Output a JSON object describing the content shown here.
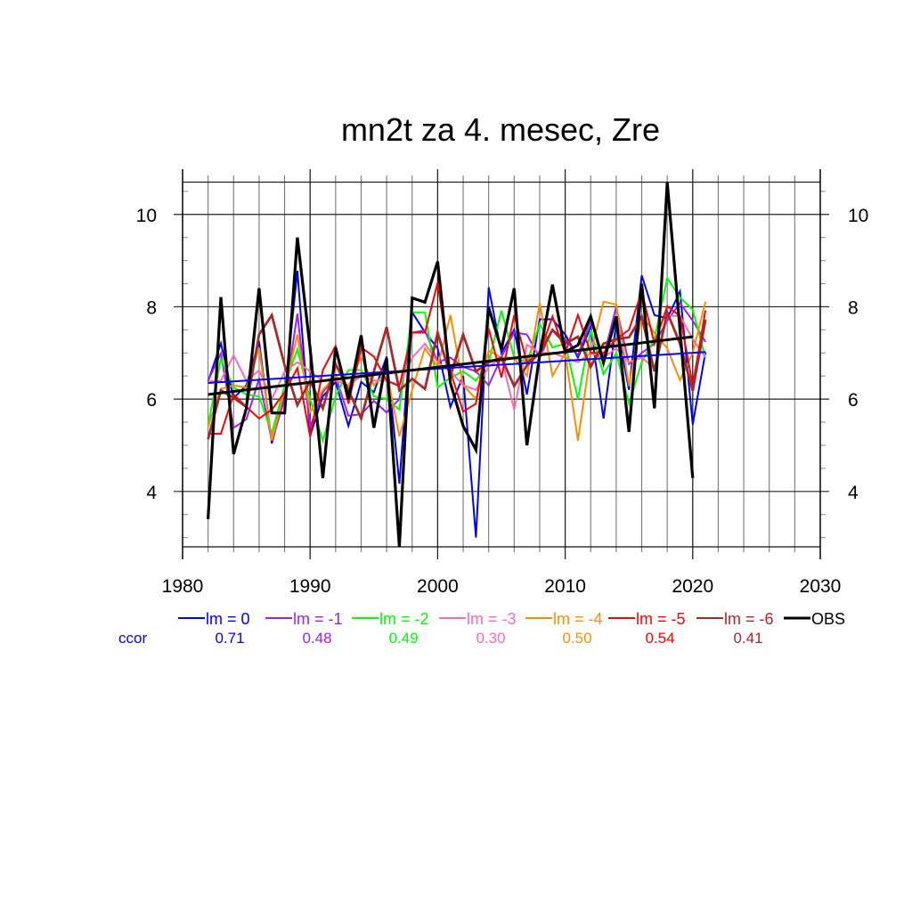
{
  "chart_data": {
    "type": "line",
    "title": "mn2t za 4. mesec, Zre",
    "xlabel": "",
    "ylabel": "",
    "xlim": [
      1980,
      2030
    ],
    "ylim": [
      2.8,
      10.7
    ],
    "x_ticks": [
      1980,
      1990,
      2000,
      2010,
      2020,
      2030
    ],
    "x_tick_labels": [
      "1980",
      "1990",
      "2000",
      "2010",
      "2020",
      "2030"
    ],
    "y_ticks": [
      4,
      6,
      8,
      10
    ],
    "y_tick_labels": [
      "4",
      "6",
      "8",
      "10"
    ],
    "y_labels_both_sides": true,
    "grid": true,
    "legend_position": "bottom",
    "correlation_label": "ccor",
    "x": [
      1982,
      1983,
      1984,
      1985,
      1986,
      1987,
      1988,
      1989,
      1990,
      1991,
      1992,
      1993,
      1994,
      1995,
      1996,
      1997,
      1998,
      1999,
      2000,
      2001,
      2002,
      2003,
      2004,
      2005,
      2006,
      2007,
      2008,
      2009,
      2010,
      2011,
      2012,
      2013,
      2014,
      2015,
      2016,
      2017,
      2018,
      2019,
      2020,
      2021
    ],
    "series": [
      {
        "name": "lm = 0",
        "color": "#0000ff",
        "ccor": "0.71",
        "values": [
          6.38,
          7.21,
          6.02,
          6.3,
          7.25,
          5.04,
          6.1,
          8.78,
          5.2,
          6.06,
          6.37,
          5.42,
          6.37,
          6.15,
          6.92,
          4.17,
          7.88,
          7.45,
          7.1,
          5.83,
          6.5,
          3.0,
          8.42,
          7.0,
          7.5,
          6.1,
          7.73,
          7.73,
          7.4,
          6.9,
          7.56,
          5.58,
          7.65,
          6.2,
          8.68,
          7.82,
          7.75,
          8.33,
          5.45,
          7.02
        ],
        "trend": [
          6.35,
          7.02
        ]
      },
      {
        "name": "lm = -1",
        "color": "#a020f0",
        "ccor": "0.48",
        "values": [
          6.4,
          6.99,
          5.38,
          5.56,
          6.44,
          5.1,
          6.0,
          7.85,
          5.4,
          6.15,
          6.5,
          5.64,
          5.67,
          5.96,
          5.71,
          6.0,
          7.44,
          7.49,
          6.8,
          6.9,
          6.7,
          6.6,
          6.3,
          6.91,
          7.45,
          7.4,
          6.9,
          7.5,
          7.3,
          6.95,
          7.7,
          6.9,
          8.0,
          6.76,
          7.0,
          7.2,
          7.7,
          8.08,
          7.7,
          7.24
        ]
      },
      {
        "name": "lm = -2",
        "color": "#00ff00",
        "ccor": "0.49",
        "values": [
          5.44,
          6.87,
          6.25,
          6.1,
          6.06,
          5.26,
          6.3,
          7.08,
          6.0,
          5.1,
          6.06,
          6.63,
          6.63,
          6.06,
          6.0,
          5.77,
          7.88,
          7.88,
          6.25,
          6.47,
          6.6,
          6.4,
          6.8,
          7.92,
          6.9,
          6.8,
          7.63,
          7.12,
          7.2,
          6.0,
          7.5,
          6.54,
          7.0,
          5.9,
          6.8,
          7.3,
          8.62,
          8.2,
          7.94,
          6.89
        ]
      },
      {
        "name": "lm = -3",
        "color": "#ff69b4",
        "ccor": "0.30",
        "values": [
          6.38,
          6.4,
          6.95,
          6.4,
          6.62,
          6.0,
          6.6,
          6.8,
          6.6,
          6.4,
          6.4,
          6.3,
          6.5,
          6.4,
          6.4,
          6.3,
          6.9,
          7.2,
          6.8,
          6.6,
          6.3,
          6.2,
          6.7,
          6.9,
          5.77,
          7.18,
          7.0,
          7.0,
          6.9,
          6.8,
          7.0,
          6.9,
          7.1,
          6.8,
          6.9,
          6.67,
          7.8,
          7.8,
          7.3,
          6.9
        ]
      },
      {
        "name": "lm = -4",
        "color": "#ff8c00",
        "ccor": "0.50",
        "values": [
          5.4,
          6.22,
          6.3,
          6.25,
          7.11,
          5.1,
          6.2,
          7.4,
          5.72,
          6.2,
          6.5,
          6.28,
          6.92,
          6.3,
          6.6,
          5.19,
          6.2,
          7.1,
          6.7,
          7.82,
          6.3,
          6.0,
          7.05,
          6.9,
          6.9,
          6.5,
          8.08,
          6.5,
          7.0,
          5.1,
          7.0,
          8.11,
          8.05,
          6.28,
          7.8,
          7.44,
          7.1,
          6.41,
          7.0,
          8.11
        ]
      },
      {
        "name": "lm = -5",
        "color": "#ff0000",
        "ccor": "0.54",
        "values": [
          5.25,
          5.25,
          6.1,
          5.83,
          5.58,
          5.77,
          6.15,
          6.67,
          5.19,
          6.63,
          7.15,
          5.9,
          7.12,
          6.92,
          6.4,
          6.28,
          7.44,
          7.44,
          8.52,
          6.6,
          5.73,
          5.9,
          7.53,
          6.47,
          7.82,
          6.8,
          7.0,
          7.79,
          7.0,
          7.82,
          7.0,
          7.0,
          7.3,
          7.5,
          8.33,
          7.2,
          8.01,
          7.8,
          6.3,
          7.92
        ]
      },
      {
        "name": "lm = -6",
        "color": "#a52a2a",
        "ccor": "0.41",
        "values": [
          5.13,
          6.19,
          6.03,
          5.83,
          7.4,
          7.82,
          6.73,
          5.87,
          6.4,
          5.8,
          6.76,
          6.2,
          5.58,
          6.6,
          7.56,
          6.19,
          6.44,
          6.22,
          7.44,
          6.5,
          7.4,
          6.6,
          6.8,
          6.9,
          6.28,
          6.73,
          7.0,
          7.5,
          7.2,
          7.35,
          6.7,
          7.2,
          7.3,
          7.34,
          7.79,
          6.6,
          7.88,
          7.2,
          6.18,
          7.72
        ]
      },
      {
        "name": "OBS",
        "color": "#000000",
        "ccor": "",
        "values": [
          3.4,
          8.21,
          4.81,
          5.8,
          8.4,
          5.7,
          5.7,
          9.5,
          7.1,
          4.29,
          7.12,
          6.0,
          7.38,
          5.38,
          6.88,
          2.8,
          8.19,
          8.1,
          8.98,
          6.35,
          5.42,
          4.9,
          7.98,
          7.08,
          8.4,
          5.0,
          6.96,
          8.48,
          7.02,
          7.17,
          7.79,
          6.79,
          7.79,
          5.29,
          8.5,
          5.8,
          10.69,
          7.5,
          4.29,
          null
        ],
        "trend": [
          6.1,
          7.35
        ]
      }
    ]
  }
}
